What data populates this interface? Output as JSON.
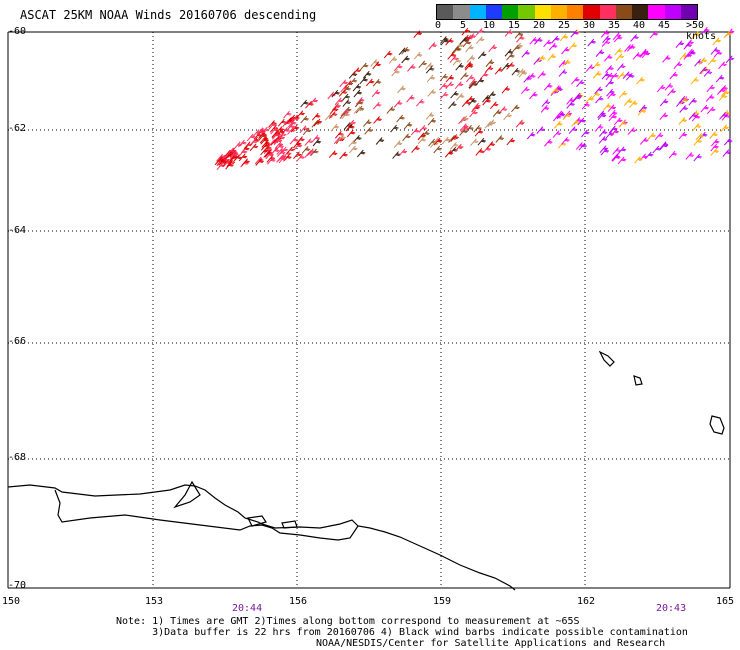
{
  "title": "ASCAT 25KM NOAA Winds 20160706 descending",
  "legend": {
    "colors": [
      "#5a5a5a",
      "#8c8c8c",
      "#00b4ff",
      "#1e3cff",
      "#00a000",
      "#74c800",
      "#ffe000",
      "#ffb000",
      "#ff8000",
      "#e00000",
      "#ff3060",
      "#8a4a1a",
      "#3a2010",
      "#ff00ff",
      "#c000ff",
      "#7000b0"
    ],
    "labels": [
      "0",
      "5",
      "10",
      "15",
      "20",
      "25",
      "30",
      "35",
      "40",
      "45",
      ">50 knots"
    ]
  },
  "lat_labels": [
    "-60",
    "-62",
    "-64",
    "-66",
    "-68",
    "-70"
  ],
  "lon_labels": [
    "150",
    "153",
    "156",
    "159",
    "162",
    "165"
  ],
  "times": [
    "20:44",
    "20:43"
  ],
  "notes": [
    "Note: 1) Times are GMT 2)Times along bottom correspond to measurement at ~65S",
    "      3)Data buffer is 22 hrs from 20160706 4) Black wind barbs indicate possible contamination",
    "NOAA/NESDIS/Center for Satellite Applications and Research"
  ]
}
